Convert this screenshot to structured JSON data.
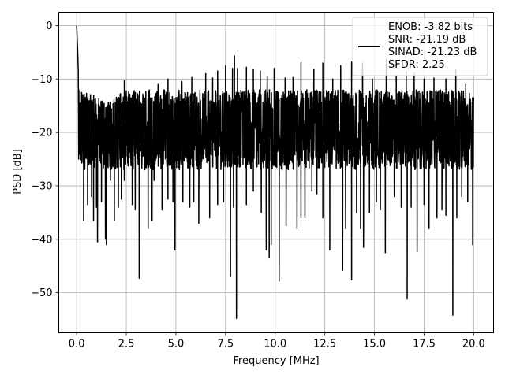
{
  "chart_data": {
    "type": "line",
    "xlabel": "Frequency [MHz]",
    "ylabel": "PSD [dB]",
    "xlim": [
      -0.9,
      21.0
    ],
    "ylim": [
      -57.5,
      2.5
    ],
    "x_ticks": [
      0.0,
      2.5,
      5.0,
      7.5,
      10.0,
      12.5,
      15.0,
      17.5,
      20.0
    ],
    "x_tick_labels": [
      "0.0",
      "2.5",
      "5.0",
      "7.5",
      "10.0",
      "12.5",
      "15.0",
      "17.5",
      "20.0"
    ],
    "y_ticks": [
      0,
      -10,
      -20,
      -30,
      -40,
      -50
    ],
    "y_tick_labels": [
      "0",
      "−10",
      "−20",
      "−30",
      "−40",
      "−50"
    ],
    "grid": true,
    "legend_position": "top-right",
    "series": [
      {
        "name": "ENOB: -3.82 bits\nSNR: -21.19 dB\nSINAD: -21.23 dB\nSFDR: 2.25",
        "color": "#000000",
        "peak": {
          "x": 0.0,
          "y": 0.0
        },
        "typical_floor_range": [
          -27,
          -12
        ],
        "envelope_high": [
          [
            0.0,
            0.0
          ],
          [
            0.05,
            -4.7
          ],
          [
            0.1,
            -8.3
          ],
          [
            0.2,
            -10.0
          ],
          [
            1.5,
            -13.0
          ],
          [
            2.5,
            -10.5
          ],
          [
            4.5,
            -9.5
          ],
          [
            6.5,
            -8.5
          ],
          [
            8.0,
            -6.0
          ],
          [
            10.0,
            -8.0
          ],
          [
            12.5,
            -8.5
          ],
          [
            14.0,
            -7.0
          ],
          [
            16.0,
            -8.5
          ],
          [
            17.5,
            -9.0
          ],
          [
            19.0,
            -10.0
          ],
          [
            20.0,
            -11.5
          ]
        ],
        "deep_dips": [
          [
            0.1,
            -25.0
          ],
          [
            0.35,
            -36.5
          ],
          [
            0.55,
            -33.5
          ],
          [
            0.75,
            -32.0
          ],
          [
            0.85,
            -36.5
          ],
          [
            1.0,
            -34.0
          ],
          [
            1.05,
            -40.5
          ],
          [
            1.25,
            -33.0
          ],
          [
            1.45,
            -40.0
          ],
          [
            1.5,
            -41.0
          ],
          [
            1.7,
            -29.0
          ],
          [
            1.9,
            -36.5
          ],
          [
            2.1,
            -34.0
          ],
          [
            2.25,
            -32.5
          ],
          [
            2.4,
            -29.0
          ],
          [
            2.8,
            -33.5
          ],
          [
            2.95,
            -34.5
          ],
          [
            3.15,
            -47.3
          ],
          [
            3.6,
            -38.0
          ],
          [
            3.8,
            -36.5
          ],
          [
            3.9,
            -29.0
          ],
          [
            4.3,
            -34.5
          ],
          [
            4.6,
            -32.5
          ],
          [
            4.85,
            -33.0
          ],
          [
            4.95,
            -42.0
          ],
          [
            5.35,
            -33.0
          ],
          [
            5.7,
            -34.0
          ],
          [
            5.9,
            -33.0
          ],
          [
            6.15,
            -37.0
          ],
          [
            6.7,
            -36.0
          ],
          [
            7.1,
            -33.5
          ],
          [
            7.4,
            -33.0
          ],
          [
            7.75,
            -47.0
          ],
          [
            7.9,
            -34.0
          ],
          [
            8.05,
            -54.8
          ],
          [
            8.55,
            -33.5
          ],
          [
            8.9,
            -31.0
          ],
          [
            9.3,
            -35.0
          ],
          [
            9.55,
            -42.0
          ],
          [
            9.7,
            -43.5
          ],
          [
            9.8,
            -41.0
          ],
          [
            10.2,
            -47.8
          ],
          [
            10.55,
            -37.5
          ],
          [
            11.1,
            -38.0
          ],
          [
            11.3,
            -36.0
          ],
          [
            11.5,
            -36.0
          ],
          [
            11.85,
            -31.0
          ],
          [
            12.1,
            -31.5
          ],
          [
            12.4,
            -36.0
          ],
          [
            12.75,
            -42.0
          ],
          [
            13.4,
            -45.8
          ],
          [
            13.55,
            -38.0
          ],
          [
            13.85,
            -47.6
          ],
          [
            14.1,
            -35.0
          ],
          [
            14.3,
            -38.0
          ],
          [
            14.45,
            -41.5
          ],
          [
            14.75,
            -35.0
          ],
          [
            15.1,
            -33.0
          ],
          [
            15.3,
            -34.5
          ],
          [
            15.55,
            -42.5
          ],
          [
            16.0,
            -32.0
          ],
          [
            16.35,
            -34.0
          ],
          [
            16.65,
            -51.2
          ],
          [
            16.85,
            -34.0
          ],
          [
            17.15,
            -42.3
          ],
          [
            17.5,
            -33.5
          ],
          [
            17.75,
            -38.0
          ],
          [
            18.15,
            -36.0
          ],
          [
            18.4,
            -34.5
          ],
          [
            18.6,
            -35.5
          ],
          [
            18.95,
            -54.2
          ],
          [
            19.15,
            -36.0
          ],
          [
            19.4,
            -32.0
          ],
          [
            19.7,
            -33.0
          ],
          [
            19.95,
            -41.0
          ]
        ],
        "tall_spikes": [
          [
            0.0,
            0.0
          ],
          [
            0.05,
            -4.7
          ],
          [
            0.08,
            -8.3
          ],
          [
            2.4,
            -10.3
          ],
          [
            4.1,
            -11.0
          ],
          [
            4.6,
            -10.0
          ],
          [
            5.3,
            -10.5
          ],
          [
            5.8,
            -9.7
          ],
          [
            6.5,
            -9.0
          ],
          [
            6.85,
            -9.8
          ],
          [
            7.1,
            -8.5
          ],
          [
            7.5,
            -7.5
          ],
          [
            7.85,
            -8.0
          ],
          [
            7.95,
            -5.7
          ],
          [
            8.1,
            -8.0
          ],
          [
            8.55,
            -7.8
          ],
          [
            8.9,
            -8.2
          ],
          [
            9.25,
            -8.5
          ],
          [
            9.6,
            -9.5
          ],
          [
            9.95,
            -8.0
          ],
          [
            10.5,
            -9.8
          ],
          [
            10.9,
            -9.7
          ],
          [
            11.3,
            -7.0
          ],
          [
            11.95,
            -8.2
          ],
          [
            12.4,
            -7.0
          ],
          [
            12.9,
            -10.0
          ],
          [
            13.3,
            -7.5
          ],
          [
            13.85,
            -6.8
          ],
          [
            14.4,
            -7.0
          ],
          [
            14.9,
            -10.0
          ],
          [
            15.6,
            -6.3
          ],
          [
            16.1,
            -9.3
          ],
          [
            16.6,
            -8.5
          ],
          [
            17.0,
            -9.0
          ],
          [
            17.5,
            -10.0
          ],
          [
            18.0,
            -9.8
          ],
          [
            18.6,
            -10.0
          ],
          [
            19.1,
            -8.3
          ],
          [
            19.6,
            -11.0
          ]
        ]
      }
    ]
  }
}
